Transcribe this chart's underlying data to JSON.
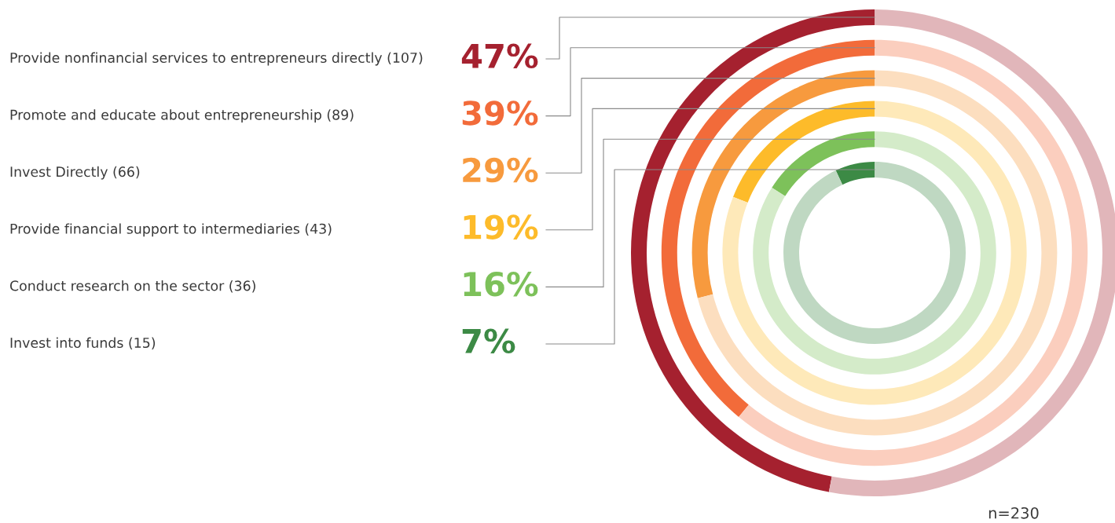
{
  "chart_data": {
    "type": "other",
    "categories": [
      "Provide nonfinancial services to entrepreneurs directly (107)",
      "Promote and educate about entrepreneurship (89)",
      "Invest Directly (66)",
      "Provide financial support to intermediaries (43)",
      "Conduct research on the sector (36)",
      "Invest into funds (15)"
    ],
    "values": [
      47,
      39,
      29,
      19,
      16,
      7
    ],
    "value_labels": [
      "47%",
      "39%",
      "29%",
      "19%",
      "16%",
      "7%"
    ],
    "colors": [
      "#a5212f",
      "#f26b3a",
      "#f79a3e",
      "#fdbb2a",
      "#7dc15a",
      "#3c8a45"
    ],
    "annotations": [
      "n=230"
    ]
  }
}
